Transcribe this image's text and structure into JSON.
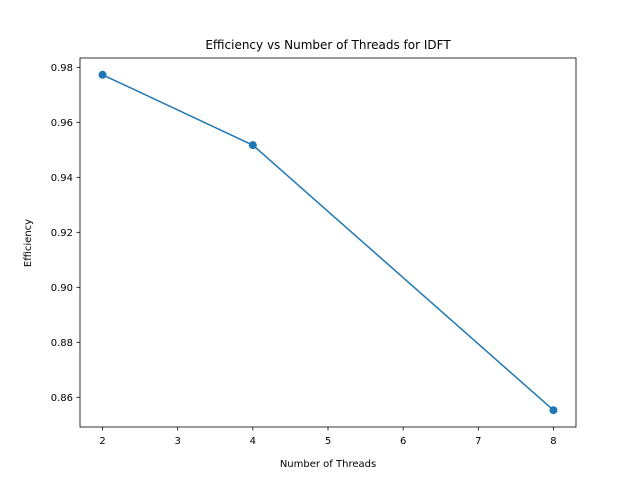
{
  "chart_data": {
    "type": "line",
    "title": "Efficiency vs Number of Threads for IDFT",
    "xlabel": "Number of Threads",
    "ylabel": "Efficiency",
    "x": [
      2,
      4,
      8
    ],
    "series": [
      {
        "values": [
          0.9773,
          0.9517,
          0.8553
        ],
        "color": "#1f77b4",
        "marker": "circle"
      }
    ],
    "xlim": [
      1.7,
      8.3
    ],
    "ylim": [
      0.8492,
      0.9834
    ],
    "xticks": [
      2,
      3,
      4,
      5,
      6,
      7,
      8
    ],
    "yticks": [
      0.86,
      0.88,
      0.9,
      0.92,
      0.94,
      0.96,
      0.98
    ],
    "ytick_labels": [
      "0.86",
      "0.88",
      "0.90",
      "0.92",
      "0.94",
      "0.96",
      "0.98"
    ],
    "grid": false,
    "legend": "none"
  }
}
